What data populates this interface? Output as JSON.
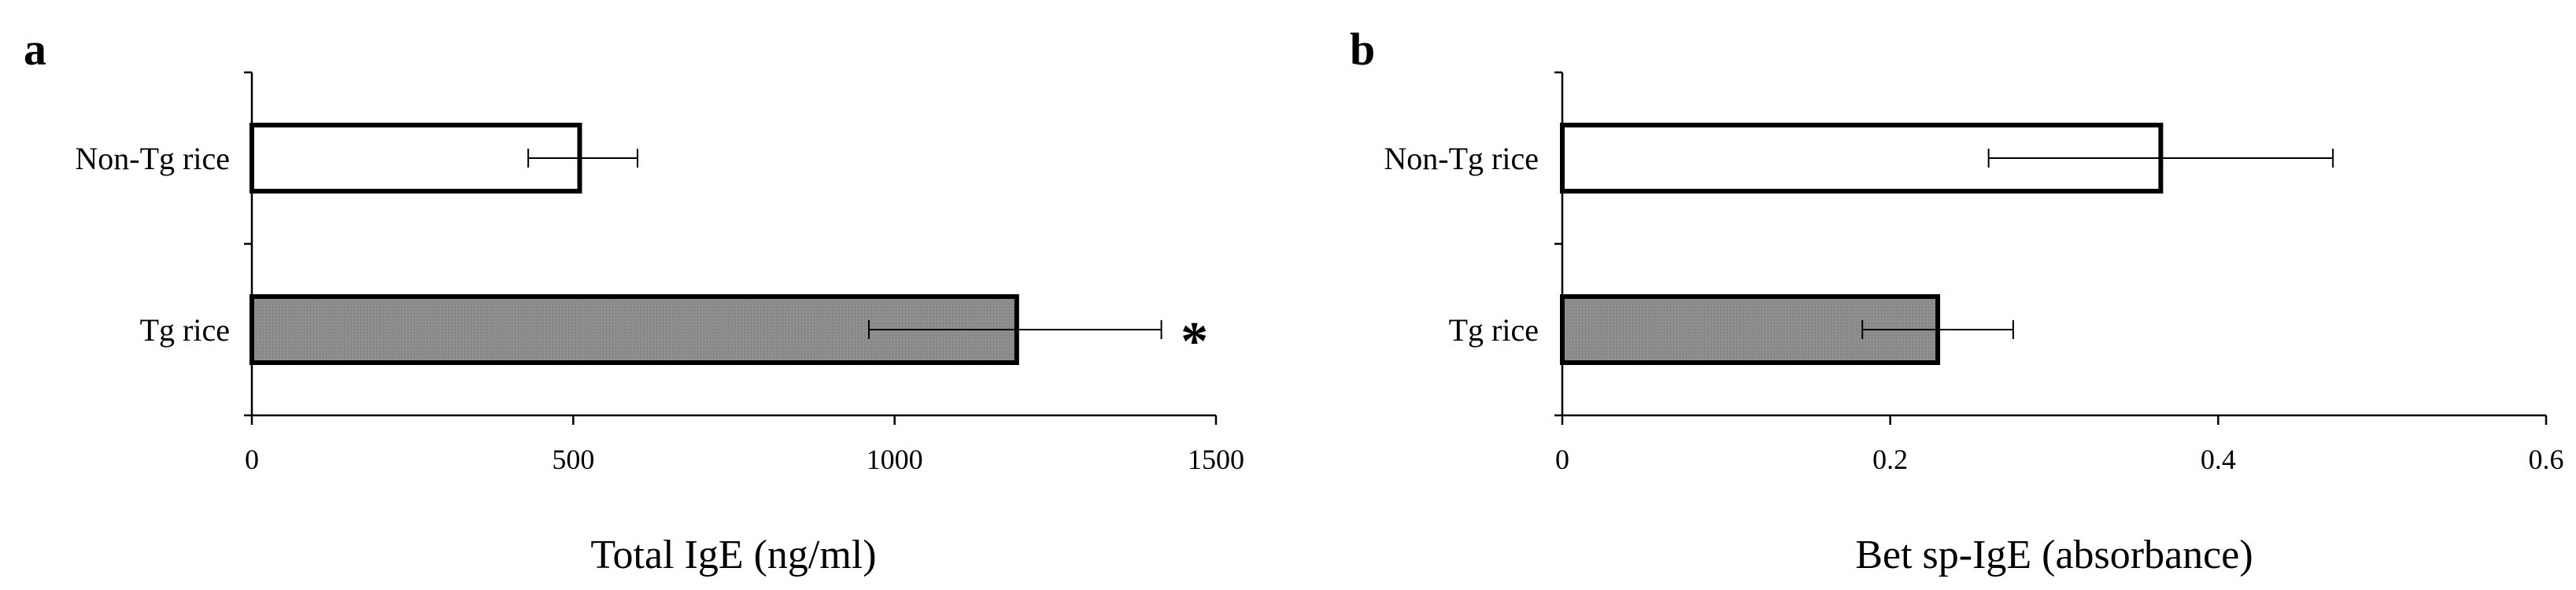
{
  "chart_data": [
    {
      "type": "bar",
      "orientation": "horizontal",
      "panel_label": "a",
      "categories": [
        "Non-Tg rice",
        "Tg rice"
      ],
      "values": [
        510,
        1190
      ],
      "error_low": [
        430,
        960
      ],
      "error_high": [
        600,
        1415
      ],
      "fills": [
        "#ffffff",
        "#8c8c8c"
      ],
      "xlabel": "Total IgE (ng/ml)",
      "xlim": [
        0,
        1500
      ],
      "xticks": [
        0,
        500,
        1000,
        1500
      ],
      "xtick_labels": [
        "0",
        "500",
        "1000",
        "1500"
      ],
      "annotations": [
        {
          "category": "Tg rice",
          "text": "*"
        }
      ],
      "grid": false
    },
    {
      "type": "bar",
      "orientation": "horizontal",
      "panel_label": "b",
      "categories": [
        "Non-Tg rice",
        "Tg rice"
      ],
      "values": [
        0.365,
        0.229
      ],
      "error_low": [
        0.26,
        0.183
      ],
      "error_high": [
        0.47,
        0.275
      ],
      "fills": [
        "#ffffff",
        "#8c8c8c"
      ],
      "xlabel": "Bet sp-IgE (absorbance)",
      "xlim": [
        0,
        0.6
      ],
      "xticks": [
        0,
        0.2,
        0.4,
        0.6
      ],
      "xtick_labels": [
        "0",
        "0.2",
        "0.4",
        "0.6"
      ],
      "annotations": [],
      "grid": false
    }
  ]
}
